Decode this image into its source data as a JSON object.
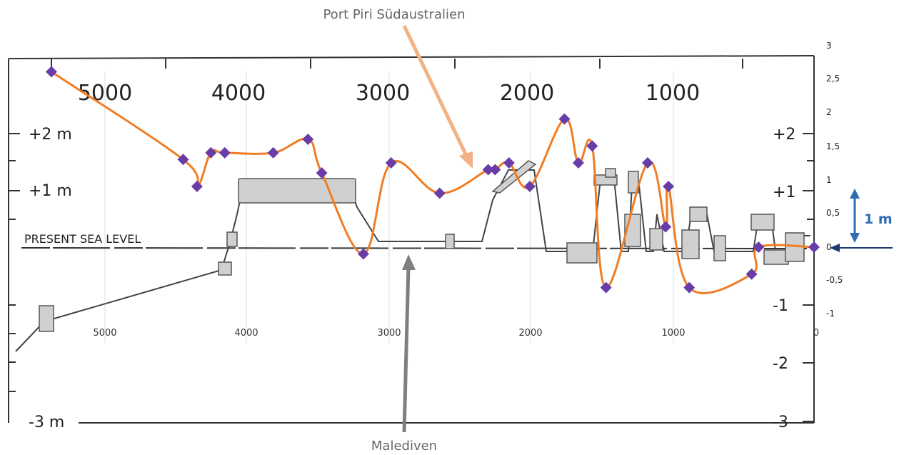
{
  "chart_data": {
    "type": "line",
    "annotations": {
      "top_callout": "Port Piri Südaustralien",
      "bottom_callout": "Malediven",
      "present_sea_level": "PRESENT SEA LEVEL",
      "scale_bar": "1 m"
    },
    "x_ticks_top": [
      "5000",
      "4000",
      "3000",
      "2000",
      "1000"
    ],
    "x_ticks_mid": [
      "5000",
      "4000",
      "3000",
      "2000",
      "1000",
      "0"
    ],
    "left_y_ticks": [
      "+2 m",
      "+1 m",
      "-3 m"
    ],
    "right_y_ticks_big": [
      "+2",
      "+1",
      "-1",
      "-2",
      "-3"
    ],
    "right_y_ticks_small": [
      "3",
      "2,5",
      "2",
      "1,5",
      "1",
      "0,5",
      "0",
      "-0,5",
      "-1"
    ],
    "xlim": [
      5500,
      0
    ],
    "ylim": [
      -1,
      3
    ],
    "colors": {
      "series": "#f07d24",
      "points": "#6a3ca8",
      "scale": "#2f6db3",
      "arrow_top": "#f4b183",
      "arrow_bottom": "#7f7f7f",
      "background_curve": "#444444"
    },
    "series": [
      {
        "x": [
          5500,
          4550,
          4450,
          4350,
          4250,
          3900,
          3650,
          3550,
          3250,
          3050,
          2700,
          2350,
          2300,
          2200,
          2050,
          1800,
          1700,
          1600,
          1500,
          1200,
          1070,
          1050,
          900,
          450,
          400,
          0
        ],
        "y": [
          2.6,
          1.3,
          0.9,
          1.4,
          1.4,
          1.4,
          1.6,
          1.1,
          -0.1,
          1.25,
          0.8,
          1.15,
          1.15,
          1.25,
          0.9,
          1.9,
          1.25,
          1.5,
          -0.6,
          1.25,
          0.3,
          0.9,
          -0.6,
          -0.4,
          0.0,
          0.0
        ]
      }
    ]
  }
}
